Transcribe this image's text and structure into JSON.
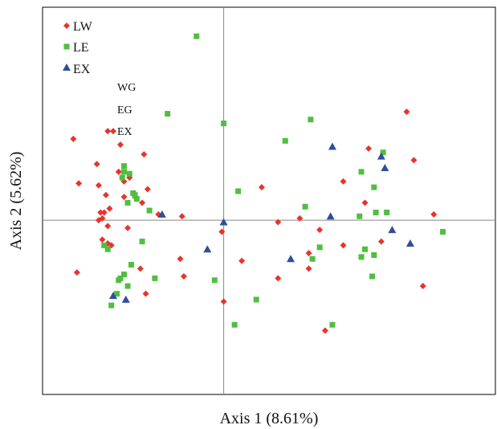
{
  "chart_data": {
    "type": "scatter",
    "xlabel": "Axis 1 (8.61%)",
    "ylabel": "Axis 2 (5.62%)",
    "xlim": [
      -1.0,
      1.5
    ],
    "ylim": [
      -0.9,
      1.1
    ],
    "grid": false,
    "zero_lines": true,
    "legend_position": "top-left",
    "annotations": [
      "WG",
      "EG",
      "EX"
    ],
    "series": [
      {
        "name": "LW",
        "marker": "diamond",
        "color": "#e8342a",
        "points": [
          [
            -0.83,
            0.42
          ],
          [
            -0.64,
            0.46
          ],
          [
            -0.61,
            0.46
          ],
          [
            -0.57,
            0.39
          ],
          [
            -0.44,
            0.34
          ],
          [
            -0.7,
            0.29
          ],
          [
            -0.58,
            0.25
          ],
          [
            -0.69,
            0.18
          ],
          [
            -0.65,
            0.13
          ],
          [
            -0.55,
            0.2
          ],
          [
            -0.52,
            0.22
          ],
          [
            -0.42,
            0.16
          ],
          [
            -0.8,
            0.19
          ],
          [
            -0.49,
            0.12
          ],
          [
            -0.55,
            0.12
          ],
          [
            -0.63,
            0.06
          ],
          [
            -0.66,
            0.04
          ],
          [
            -0.67,
            0.01
          ],
          [
            -0.68,
            0.04
          ],
          [
            -0.69,
            0.0
          ],
          [
            -0.45,
            0.09
          ],
          [
            -0.36,
            0.03
          ],
          [
            -0.64,
            -0.03
          ],
          [
            -0.53,
            -0.04
          ],
          [
            -0.67,
            -0.1
          ],
          [
            -0.64,
            -0.12
          ],
          [
            -0.62,
            -0.13
          ],
          [
            -0.46,
            -0.25
          ],
          [
            -0.81,
            -0.27
          ],
          [
            -0.24,
            -0.2
          ],
          [
            -0.22,
            -0.29
          ],
          [
            -0.43,
            -0.38
          ],
          [
            -0.23,
            0.02
          ],
          [
            -0.01,
            -0.06
          ],
          [
            -0.0,
            -0.42
          ],
          [
            0.1,
            -0.21
          ],
          [
            0.21,
            0.17
          ],
          [
            0.3,
            -0.3
          ],
          [
            0.3,
            -0.01
          ],
          [
            0.42,
            0.01
          ],
          [
            0.47,
            -0.17
          ],
          [
            0.47,
            -0.25
          ],
          [
            0.53,
            -0.05
          ],
          [
            0.56,
            -0.57
          ],
          [
            0.66,
            0.2
          ],
          [
            0.66,
            -0.13
          ],
          [
            0.78,
            0.09
          ],
          [
            0.8,
            0.37
          ],
          [
            0.87,
            -0.11
          ],
          [
            1.01,
            0.56
          ],
          [
            1.05,
            0.31
          ],
          [
            1.1,
            -0.34
          ],
          [
            1.16,
            0.03
          ]
        ]
      },
      {
        "name": "LE",
        "marker": "square",
        "color": "#4fbf3f",
        "points": [
          [
            -0.15,
            0.95
          ],
          [
            -0.31,
            0.55
          ],
          [
            0.0,
            0.5
          ],
          [
            -0.55,
            0.25
          ],
          [
            -0.56,
            0.22
          ],
          [
            -0.52,
            0.24
          ],
          [
            -0.55,
            0.28
          ],
          [
            -0.49,
            0.13
          ],
          [
            -0.5,
            0.14
          ],
          [
            -0.53,
            0.09
          ],
          [
            -0.48,
            0.11
          ],
          [
            -0.41,
            0.05
          ],
          [
            -0.64,
            -0.15
          ],
          [
            -0.66,
            -0.13
          ],
          [
            -0.45,
            -0.11
          ],
          [
            -0.55,
            -0.28
          ],
          [
            -0.57,
            -0.3
          ],
          [
            -0.58,
            -0.31
          ],
          [
            -0.53,
            -0.34
          ],
          [
            -0.59,
            -0.38
          ],
          [
            -0.62,
            -0.44
          ],
          [
            -0.51,
            -0.23
          ],
          [
            -0.38,
            -0.3
          ],
          [
            -0.05,
            -0.31
          ],
          [
            0.08,
            0.15
          ],
          [
            0.34,
            0.41
          ],
          [
            0.45,
            0.07
          ],
          [
            0.48,
            0.52
          ],
          [
            0.53,
            -0.14
          ],
          [
            0.49,
            -0.2
          ],
          [
            0.6,
            -0.54
          ],
          [
            0.06,
            -0.54
          ],
          [
            0.75,
            0.02
          ],
          [
            0.76,
            -0.19
          ],
          [
            0.78,
            -0.15
          ],
          [
            0.83,
            0.17
          ],
          [
            0.88,
            0.35
          ],
          [
            0.9,
            0.04
          ],
          [
            0.82,
            -0.29
          ],
          [
            0.84,
            0.04
          ],
          [
            1.21,
            -0.06
          ],
          [
            0.18,
            -0.41
          ],
          [
            0.83,
            -0.18
          ],
          [
            0.76,
            0.25
          ]
        ]
      },
      {
        "name": "EX",
        "marker": "triangle",
        "color": "#2f4f9c",
        "points": [
          [
            0.6,
            0.38
          ],
          [
            0.87,
            0.33
          ],
          [
            0.89,
            0.27
          ],
          [
            -0.34,
            0.03
          ],
          [
            0.59,
            0.02
          ],
          [
            0.93,
            -0.05
          ],
          [
            0.0,
            -0.01
          ],
          [
            -0.09,
            -0.15
          ],
          [
            0.37,
            -0.2
          ],
          [
            1.03,
            -0.12
          ],
          [
            -0.61,
            -0.39
          ],
          [
            -0.54,
            -0.41
          ]
        ]
      }
    ]
  }
}
